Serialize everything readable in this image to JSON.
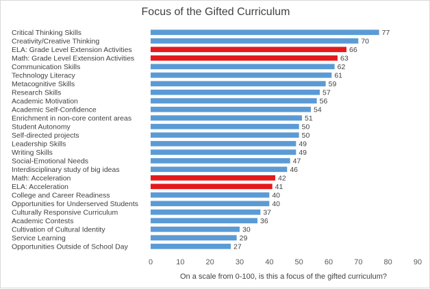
{
  "chart_data": {
    "type": "bar",
    "orientation": "horizontal",
    "title": "Focus of the Gifted Curriculum",
    "xlabel": "On a scale from 0-100, is this a focus of the gifted curriculum?",
    "ylabel": "",
    "xlim": [
      0,
      90
    ],
    "xticks": [
      0,
      10,
      20,
      30,
      40,
      50,
      60,
      70,
      80,
      90
    ],
    "grid": false,
    "legend": "none",
    "colors": {
      "default": "#5b9bd5",
      "highlight": "#e31a1c"
    },
    "categories": [
      "Critical Thinking Skills",
      "Creativity/Creative Thinking",
      "ELA: Grade Level Extension Activities",
      "Math: Grade Level Extension Activities",
      "Communication Skills",
      "Technology Literacy",
      "Metacognitive Skills",
      "Research Skills",
      "Academic Motivation",
      "Academic Self-Confidence",
      "Enrichment in non-core content areas",
      "Student Autonomy",
      "Self-directed projects",
      "Leadership Skills",
      "Writing Skills",
      "Social-Emotional Needs",
      "Interdisciplinary study of big ideas",
      "Math: Acceleration",
      "ELA: Acceleration",
      "College and Career Readiness",
      "Opportunities for Underserved Students",
      "Culturally Responsive Curriculum",
      "Academic Contests",
      "Cultivation of Cultural Identity",
      "Service Learning",
      "Opportunities Outside of School Day"
    ],
    "values": [
      77,
      70,
      66,
      63,
      62,
      61,
      59,
      57,
      56,
      54,
      51,
      50,
      50,
      49,
      49,
      47,
      46,
      42,
      41,
      40,
      40,
      37,
      36,
      30,
      29,
      27
    ],
    "highlighted": [
      false,
      false,
      true,
      true,
      false,
      false,
      false,
      false,
      false,
      false,
      false,
      false,
      false,
      false,
      false,
      false,
      false,
      true,
      true,
      false,
      false,
      false,
      false,
      false,
      false,
      false
    ]
  }
}
